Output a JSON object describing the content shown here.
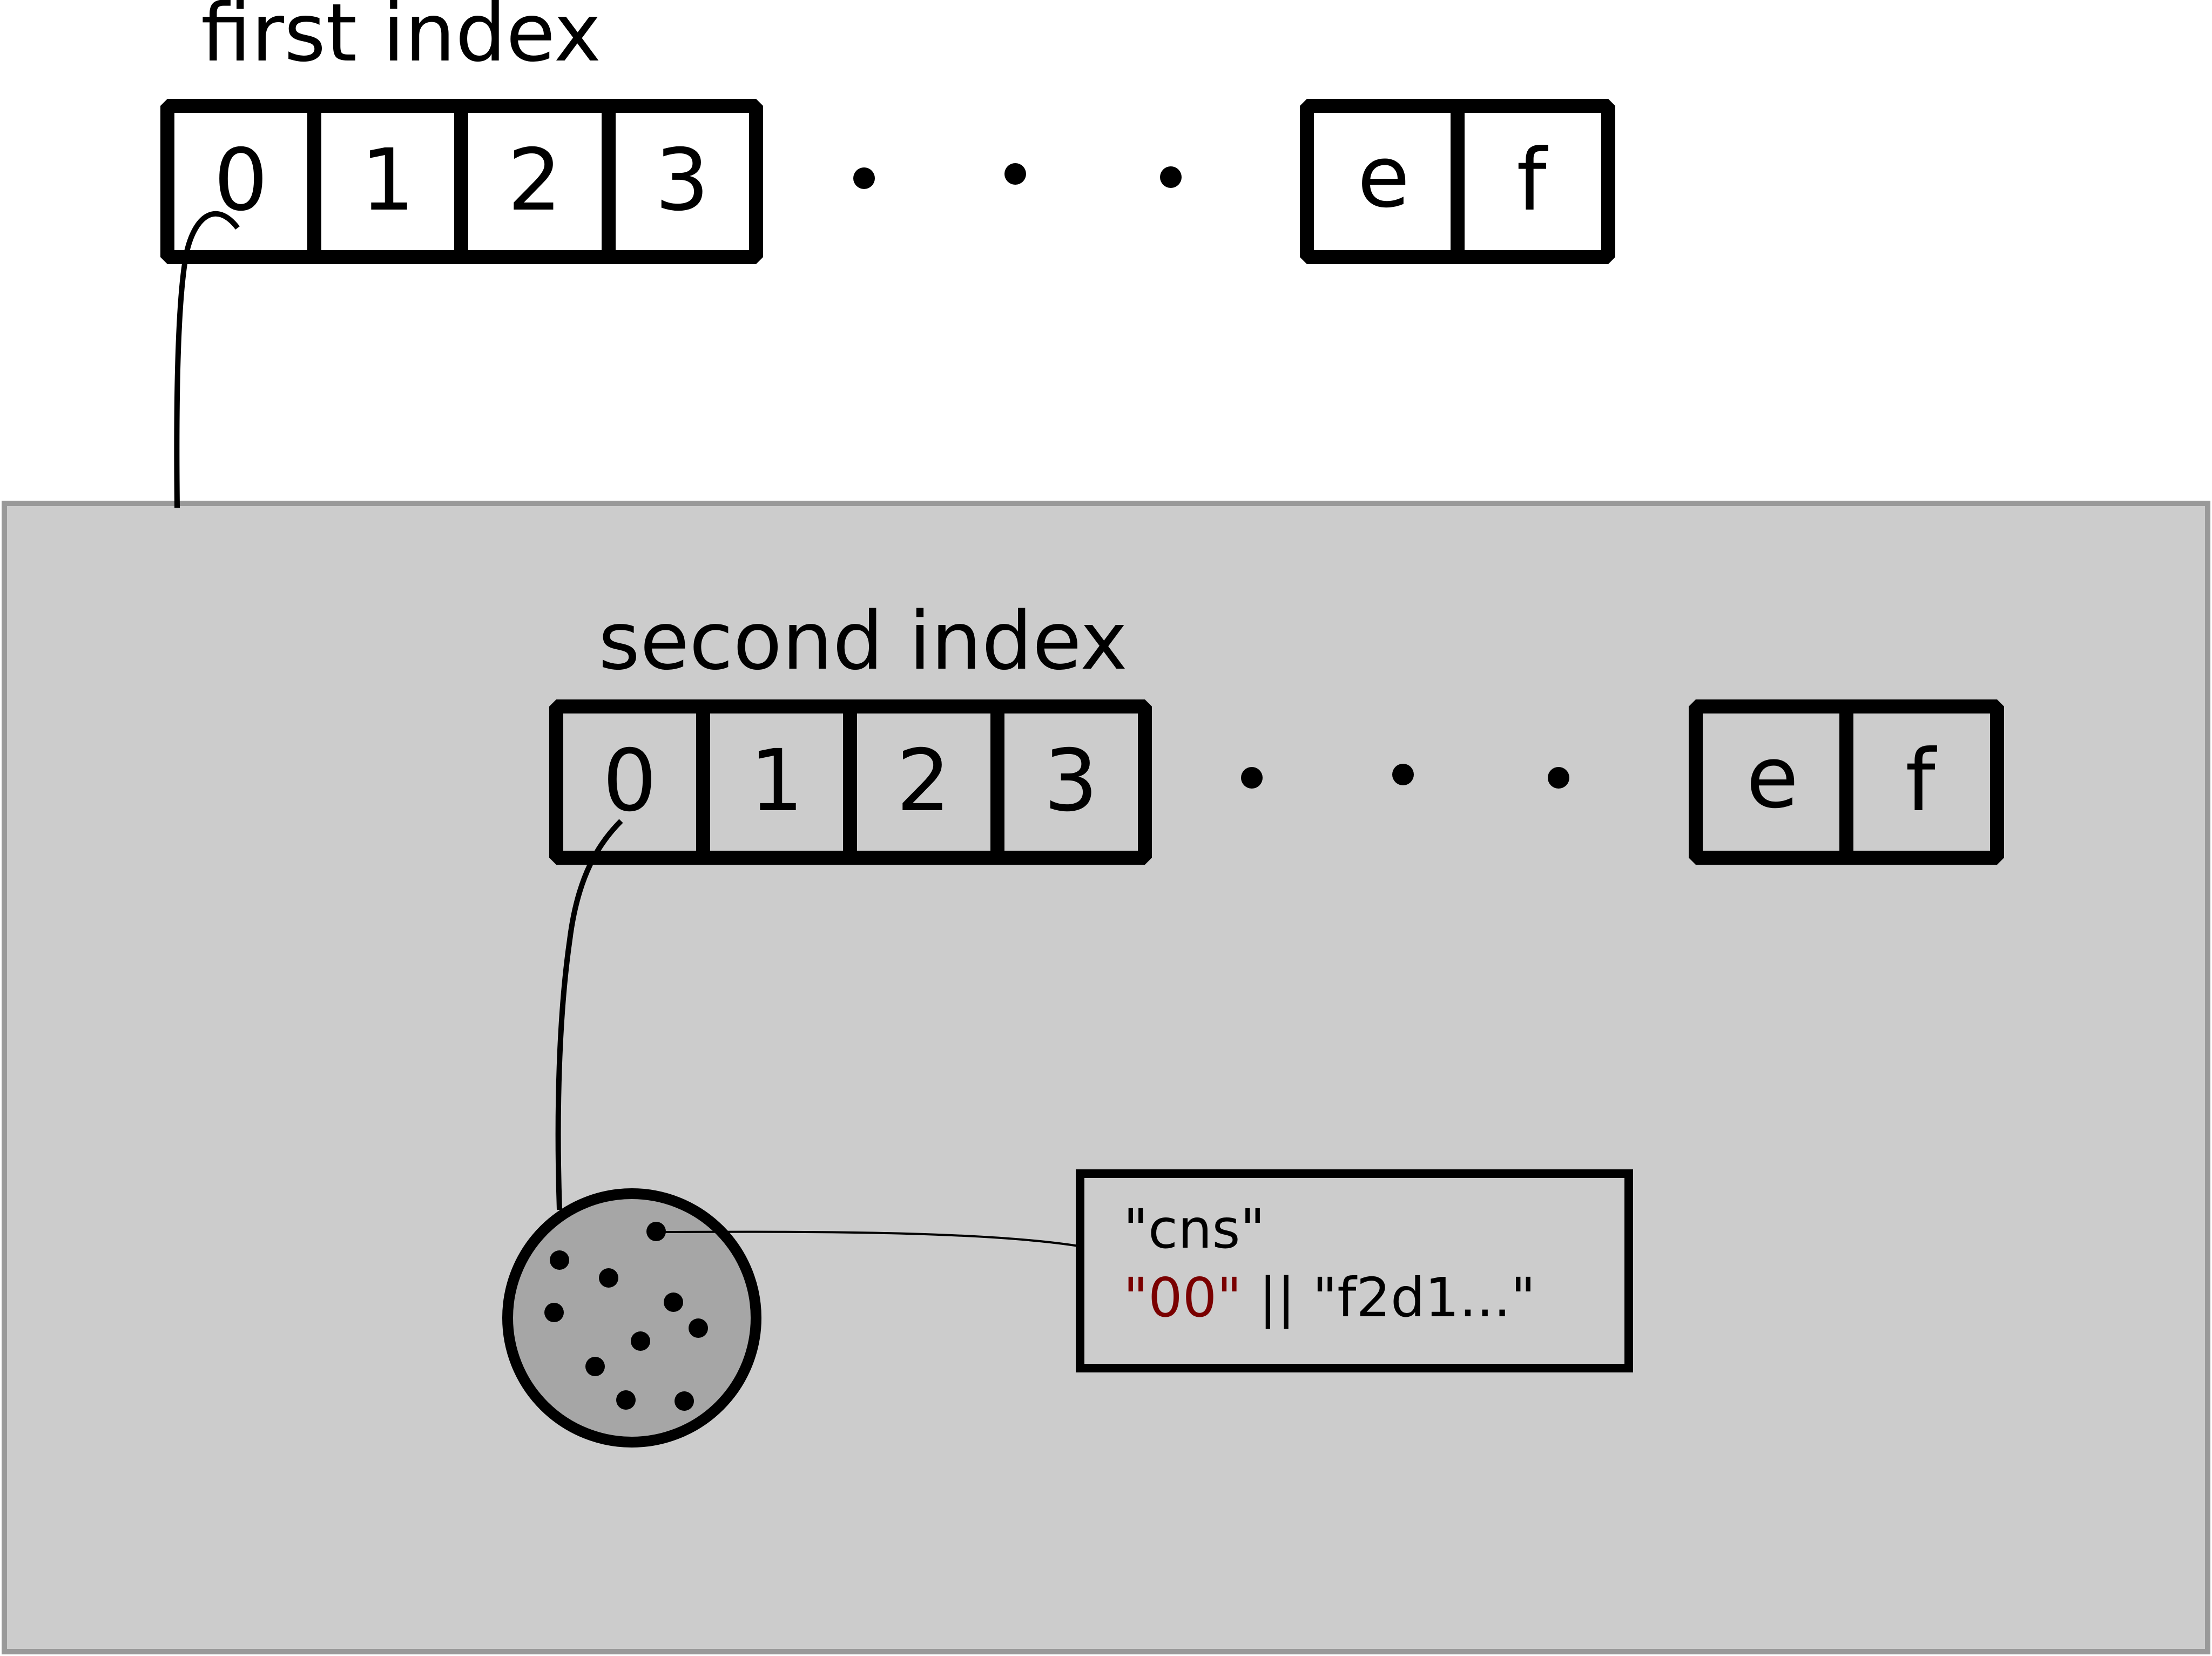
{
  "colors": {
    "panel_fill": "#cccccc",
    "panel_border": "#999999",
    "stroke": "#000000",
    "bucket_fill": "#a6a6a6",
    "highlight_red": "#7a0000"
  },
  "first_index": {
    "title": "first index",
    "left_cells": [
      "0",
      "1",
      "2",
      "3"
    ],
    "right_cells": [
      "e",
      "f"
    ],
    "ellipsis": "· · ·"
  },
  "second_index": {
    "title": "second index",
    "left_cells": [
      "0",
      "1",
      "2",
      "3"
    ],
    "right_cells": [
      "e",
      "f"
    ],
    "ellipsis": "· · ·"
  },
  "bucket": {
    "icon": "bucket-circle-icon",
    "dot_count": 11
  },
  "record": {
    "line1": "\"cns\"",
    "line2_highlight": "\"00\"",
    "line2_rest": " || \"f2d1...\""
  }
}
